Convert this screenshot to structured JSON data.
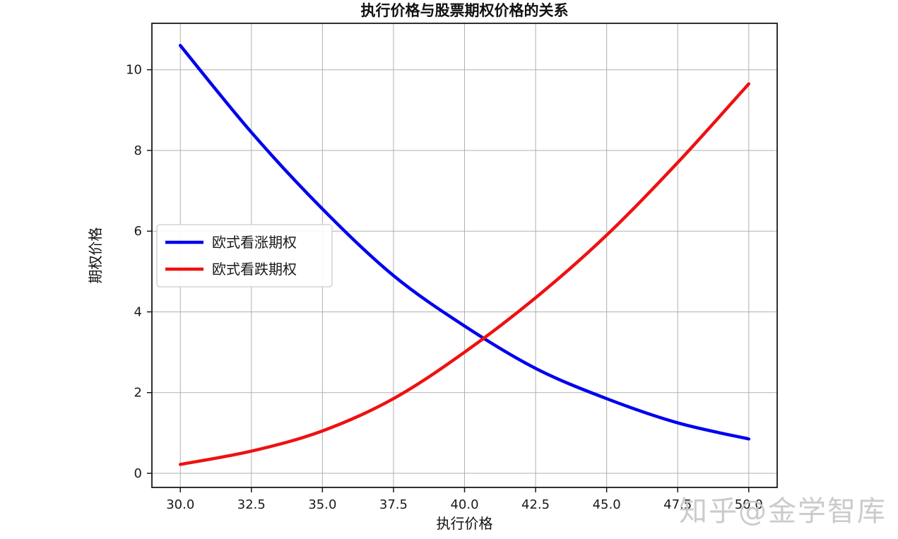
{
  "figure": {
    "background": "#ffffff"
  },
  "chart_data": {
    "type": "line",
    "title": "执行价格与股票期权价格的关系",
    "xlabel": "执行价格",
    "ylabel": "期权价格",
    "x": [
      30,
      32.5,
      35,
      37.5,
      40,
      42.5,
      45,
      47.5,
      50
    ],
    "x_tick_labels": [
      "30.0",
      "32.5",
      "35.0",
      "37.5",
      "40.0",
      "42.5",
      "45.0",
      "47.5",
      "50.0"
    ],
    "y_ticks": [
      0,
      2,
      4,
      6,
      8,
      10
    ],
    "y_tick_labels": [
      "0",
      "2",
      "4",
      "6",
      "8",
      "10"
    ],
    "xlim": [
      29,
      51
    ],
    "ylim": [
      -0.35,
      11.15
    ],
    "grid": true,
    "grid_color": "#b0b0b0",
    "legend_position": "center-left",
    "series": [
      {
        "name": "欧式看涨期权",
        "color": "#0000ee",
        "values": [
          10.6,
          8.45,
          6.55,
          4.9,
          3.65,
          2.6,
          1.85,
          1.25,
          0.85
        ]
      },
      {
        "name": "欧式看跌期权",
        "color": "#ee1111",
        "values": [
          0.22,
          0.55,
          1.05,
          1.85,
          3.0,
          4.35,
          5.9,
          7.7,
          9.65
        ]
      }
    ]
  },
  "watermark": {
    "text": "知乎@金学智库",
    "color": "#c9c9c9"
  }
}
